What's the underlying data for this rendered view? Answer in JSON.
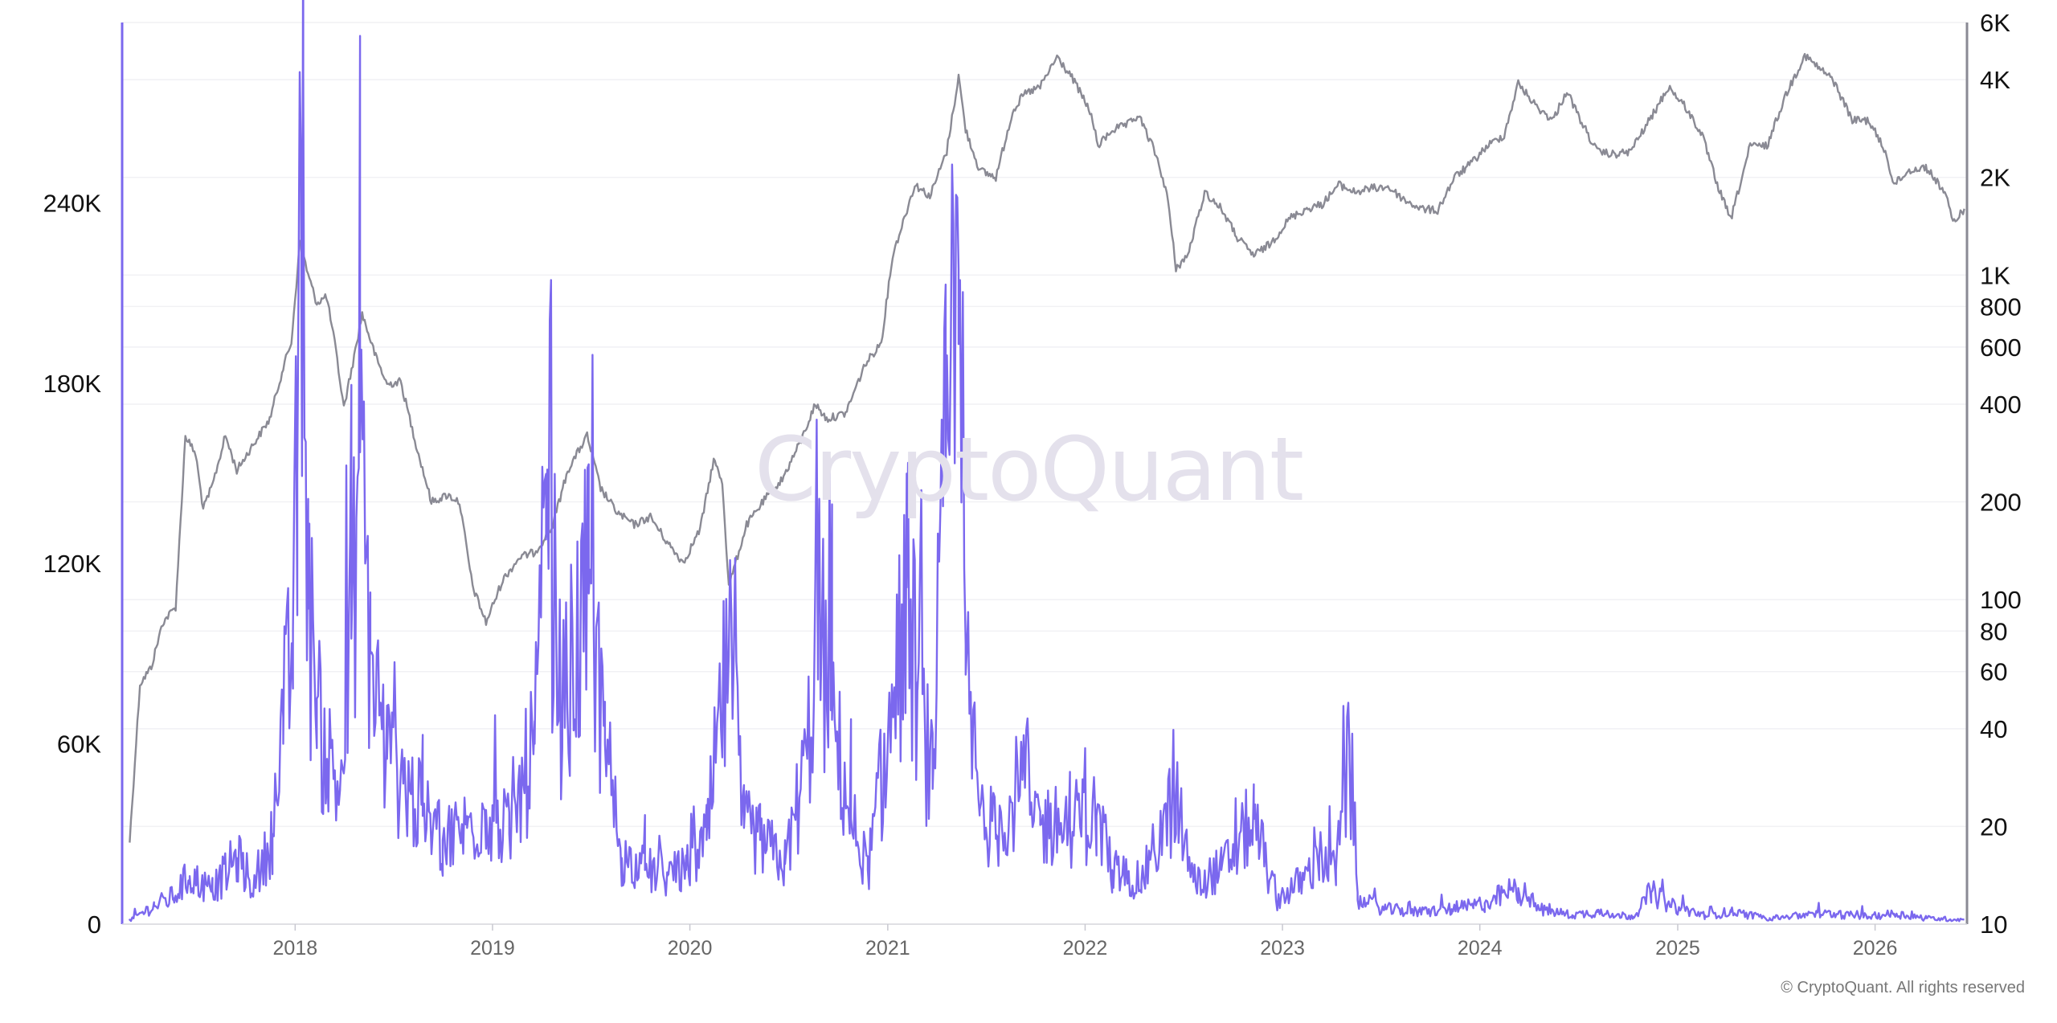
{
  "watermark": "CryptoQuant",
  "copyright": "© CryptoQuant. All rights reserved",
  "chart_data": {
    "type": "line",
    "x_tick_labels": [
      "2018",
      "2019",
      "2020",
      "2021",
      "2022",
      "2023",
      "2024",
      "2025",
      "2026"
    ],
    "x_range": [
      "2017-02-15",
      "2026-06-20"
    ],
    "left_axis": {
      "ticks": [
        0,
        60000,
        120000,
        180000,
        240000
      ],
      "tick_labels": [
        "0",
        "60K",
        "120K",
        "180K",
        "240K"
      ],
      "range": [
        0,
        300000
      ],
      "color": "#7b68ee"
    },
    "right_axis": {
      "scale": "log",
      "ticks": [
        10,
        20,
        40,
        60,
        80,
        100,
        200,
        400,
        600,
        800,
        1000,
        2000,
        4000,
        6000
      ],
      "tick_labels": [
        "10",
        "20",
        "40",
        "60",
        "80",
        "100",
        "200",
        "400",
        "600",
        "800",
        "1K",
        "2K",
        "4K",
        "6K"
      ],
      "range": [
        10,
        6000
      ],
      "color": "#8a8a94"
    },
    "grid": "horizontal",
    "series": [
      {
        "axis": "right",
        "color": "#8a8a94",
        "points": [
          [
            "2017-03-01",
            18
          ],
          [
            "2017-03-20",
            55
          ],
          [
            "2017-04-10",
            62
          ],
          [
            "2017-05-01",
            85
          ],
          [
            "2017-05-25",
            95
          ],
          [
            "2017-06-12",
            320
          ],
          [
            "2017-07-01",
            280
          ],
          [
            "2017-07-15",
            190
          ],
          [
            "2017-08-01",
            225
          ],
          [
            "2017-08-25",
            320
          ],
          [
            "2017-09-15",
            250
          ],
          [
            "2017-10-15",
            300
          ],
          [
            "2017-11-15",
            360
          ],
          [
            "2017-12-10",
            520
          ],
          [
            "2017-12-25",
            620
          ],
          [
            "2018-01-10",
            1280
          ],
          [
            "2018-01-25",
            1000
          ],
          [
            "2018-02-10",
            820
          ],
          [
            "2018-02-28",
            860
          ],
          [
            "2018-03-15",
            620
          ],
          [
            "2018-04-01",
            390
          ],
          [
            "2018-04-20",
            560
          ],
          [
            "2018-05-05",
            760
          ],
          [
            "2018-05-30",
            560
          ],
          [
            "2018-06-20",
            460
          ],
          [
            "2018-07-15",
            470
          ],
          [
            "2018-08-15",
            290
          ],
          [
            "2018-09-10",
            200
          ],
          [
            "2018-10-10",
            210
          ],
          [
            "2018-11-01",
            200
          ],
          [
            "2018-11-25",
            110
          ],
          [
            "2018-12-20",
            85
          ],
          [
            "2019-01-20",
            115
          ],
          [
            "2019-02-20",
            135
          ],
          [
            "2019-03-20",
            140
          ],
          [
            "2019-04-20",
            165
          ],
          [
            "2019-05-20",
            250
          ],
          [
            "2019-06-25",
            320
          ],
          [
            "2019-07-20",
            220
          ],
          [
            "2019-08-20",
            185
          ],
          [
            "2019-09-20",
            170
          ],
          [
            "2019-10-20",
            180
          ],
          [
            "2019-11-20",
            150
          ],
          [
            "2019-12-20",
            130
          ],
          [
            "2020-01-20",
            165
          ],
          [
            "2020-02-14",
            270
          ],
          [
            "2020-03-01",
            230
          ],
          [
            "2020-03-13",
            110
          ],
          [
            "2020-04-15",
            170
          ],
          [
            "2020-05-20",
            205
          ],
          [
            "2020-06-20",
            235
          ],
          [
            "2020-07-25",
            310
          ],
          [
            "2020-08-20",
            400
          ],
          [
            "2020-09-10",
            360
          ],
          [
            "2020-10-15",
            375
          ],
          [
            "2020-11-20",
            530
          ],
          [
            "2020-12-20",
            620
          ],
          [
            "2021-01-10",
            1150
          ],
          [
            "2021-02-20",
            1900
          ],
          [
            "2021-03-20",
            1750
          ],
          [
            "2021-04-20",
            2400
          ],
          [
            "2021-05-12",
            4100
          ],
          [
            "2021-05-25",
            2800
          ],
          [
            "2021-06-20",
            2100
          ],
          [
            "2021-07-20",
            2000
          ],
          [
            "2021-08-20",
            3200
          ],
          [
            "2021-09-10",
            3600
          ],
          [
            "2021-10-10",
            3800
          ],
          [
            "2021-11-10",
            4700
          ],
          [
            "2021-12-10",
            4000
          ],
          [
            "2022-01-10",
            3200
          ],
          [
            "2022-01-25",
            2500
          ],
          [
            "2022-02-20",
            2800
          ],
          [
            "2022-03-20",
            2900
          ],
          [
            "2022-04-10",
            3100
          ],
          [
            "2022-05-10",
            2400
          ],
          [
            "2022-06-01",
            1800
          ],
          [
            "2022-06-18",
            1050
          ],
          [
            "2022-07-10",
            1150
          ],
          [
            "2022-08-10",
            1800
          ],
          [
            "2022-09-10",
            1600
          ],
          [
            "2022-10-10",
            1300
          ],
          [
            "2022-11-09",
            1150
          ],
          [
            "2022-12-10",
            1250
          ],
          [
            "2023-01-15",
            1500
          ],
          [
            "2023-02-15",
            1600
          ],
          [
            "2023-03-15",
            1650
          ],
          [
            "2023-04-15",
            1900
          ],
          [
            "2023-05-15",
            1800
          ],
          [
            "2023-06-15",
            1850
          ],
          [
            "2023-07-15",
            1870
          ],
          [
            "2023-08-15",
            1700
          ],
          [
            "2023-09-15",
            1600
          ],
          [
            "2023-10-15",
            1580
          ],
          [
            "2023-11-15",
            2000
          ],
          [
            "2023-12-15",
            2200
          ],
          [
            "2024-01-15",
            2500
          ],
          [
            "2024-02-15",
            2700
          ],
          [
            "2024-03-12",
            3900
          ],
          [
            "2024-04-15",
            3300
          ],
          [
            "2024-05-15",
            3000
          ],
          [
            "2024-06-10",
            3700
          ],
          [
            "2024-07-05",
            3000
          ],
          [
            "2024-08-05",
            2400
          ],
          [
            "2024-09-05",
            2350
          ],
          [
            "2024-10-05",
            2400
          ],
          [
            "2024-11-15",
            3100
          ],
          [
            "2024-12-15",
            3800
          ],
          [
            "2025-01-15",
            3300
          ],
          [
            "2025-02-15",
            2700
          ],
          [
            "2025-03-15",
            1900
          ],
          [
            "2025-04-09",
            1480
          ],
          [
            "2025-05-15",
            2500
          ],
          [
            "2025-06-15",
            2500
          ],
          [
            "2025-07-20",
            3600
          ],
          [
            "2025-08-24",
            4750
          ],
          [
            "2025-09-15",
            4400
          ],
          [
            "2025-10-15",
            4000
          ],
          [
            "2025-11-20",
            3000
          ],
          [
            "2025-12-20",
            3000
          ],
          [
            "2026-01-20",
            2400
          ],
          [
            "2026-02-05",
            1900
          ],
          [
            "2026-03-05",
            2100
          ],
          [
            "2026-04-05",
            2150
          ],
          [
            "2026-05-10",
            1800
          ],
          [
            "2026-05-25",
            1450
          ],
          [
            "2026-06-15",
            1600
          ]
        ]
      },
      {
        "axis": "left",
        "color": "#7b68ee",
        "points": [
          [
            "2017-03-01",
            1500
          ],
          [
            "2017-04-15",
            6000
          ],
          [
            "2017-05-20",
            9000
          ],
          [
            "2017-06-20",
            16000
          ],
          [
            "2017-08-01",
            11000
          ],
          [
            "2017-09-15",
            22000
          ],
          [
            "2017-10-20",
            12000
          ],
          [
            "2017-11-20",
            30000
          ],
          [
            "2017-12-10",
            60000
          ],
          [
            "2017-12-28",
            98000
          ],
          [
            "2018-01-05",
            150000
          ],
          [
            "2018-01-16",
            283000
          ],
          [
            "2018-01-25",
            105000
          ],
          [
            "2018-02-10",
            75000
          ],
          [
            "2018-03-01",
            55000
          ],
          [
            "2018-03-25",
            45000
          ],
          [
            "2018-04-15",
            95000
          ],
          [
            "2018-05-01",
            157000
          ],
          [
            "2018-05-20",
            90000
          ],
          [
            "2018-06-20",
            55000
          ],
          [
            "2018-07-20",
            48000
          ],
          [
            "2018-08-25",
            36000
          ],
          [
            "2018-10-01",
            28000
          ],
          [
            "2018-11-15",
            32000
          ],
          [
            "2018-12-20",
            38000
          ],
          [
            "2019-02-01",
            30000
          ],
          [
            "2019-03-20",
            60000
          ],
          [
            "2019-04-10",
            128000
          ],
          [
            "2019-05-10",
            70000
          ],
          [
            "2019-06-28",
            110000
          ],
          [
            "2019-07-28",
            60000
          ],
          [
            "2019-08-28",
            22000
          ],
          [
            "2019-10-10",
            18000
          ],
          [
            "2019-11-20",
            16000
          ],
          [
            "2019-12-25",
            18000
          ],
          [
            "2020-02-01",
            28000
          ],
          [
            "2020-03-13",
            90000
          ],
          [
            "2020-04-10",
            32000
          ],
          [
            "2020-05-10",
            28000
          ],
          [
            "2020-06-25",
            20000
          ],
          [
            "2020-08-05",
            55000
          ],
          [
            "2020-08-25",
            102000
          ],
          [
            "2020-09-20",
            68000
          ],
          [
            "2020-10-25",
            35000
          ],
          [
            "2020-11-25",
            18000
          ],
          [
            "2021-01-11",
            70000
          ],
          [
            "2021-02-05",
            112000
          ],
          [
            "2021-02-25",
            78000
          ],
          [
            "2021-03-25",
            45000
          ],
          [
            "2021-04-18",
            150000
          ],
          [
            "2021-05-12",
            193000
          ],
          [
            "2021-05-25",
            83000
          ],
          [
            "2021-06-20",
            38000
          ],
          [
            "2021-07-20",
            30000
          ],
          [
            "2021-09-07",
            48000
          ],
          [
            "2021-10-10",
            33000
          ],
          [
            "2021-12-04",
            33000
          ],
          [
            "2022-01-22",
            36000
          ],
          [
            "2022-02-20",
            18000
          ],
          [
            "2022-04-15",
            14000
          ],
          [
            "2022-06-18",
            42000
          ],
          [
            "2022-07-20",
            14000
          ],
          [
            "2022-09-10",
            18000
          ],
          [
            "2022-11-09",
            35000
          ],
          [
            "2022-12-20",
            8000
          ],
          [
            "2023-02-10",
            15000
          ],
          [
            "2023-03-10",
            22000
          ],
          [
            "2023-04-10",
            18000
          ],
          [
            "2023-05-05",
            55000
          ],
          [
            "2023-05-20",
            8000
          ],
          [
            "2023-07-10",
            5000
          ],
          [
            "2023-09-10",
            4000
          ],
          [
            "2023-11-10",
            5000
          ],
          [
            "2023-12-20",
            6000
          ],
          [
            "2024-01-10",
            7000
          ],
          [
            "2024-03-12",
            12000
          ],
          [
            "2024-04-20",
            5000
          ],
          [
            "2024-06-20",
            3000
          ],
          [
            "2024-08-05",
            4000
          ],
          [
            "2024-10-10",
            2500
          ],
          [
            "2024-11-13",
            10500
          ],
          [
            "2024-12-20",
            6000
          ],
          [
            "2025-02-20",
            3000
          ],
          [
            "2025-04-09",
            4000
          ],
          [
            "2025-06-20",
            2000
          ],
          [
            "2025-08-24",
            3000
          ],
          [
            "2025-10-10",
            3500
          ],
          [
            "2025-12-20",
            2500
          ],
          [
            "2026-02-05",
            3500
          ],
          [
            "2026-04-05",
            2000
          ],
          [
            "2026-06-15",
            1500
          ]
        ]
      }
    ]
  }
}
